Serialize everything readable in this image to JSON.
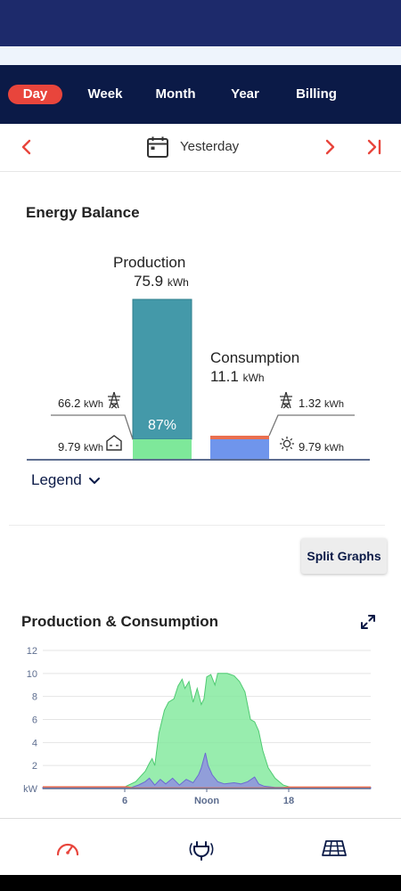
{
  "tabs": [
    {
      "label": "Day",
      "active": true
    },
    {
      "label": "Week",
      "active": false
    },
    {
      "label": "Month",
      "active": false
    },
    {
      "label": "Year",
      "active": false
    },
    {
      "label": "Billing",
      "active": false
    }
  ],
  "date_nav": {
    "label": "Yesterday"
  },
  "energy_balance": {
    "title": "Energy Balance",
    "production": {
      "label": "Production",
      "value": "75.9",
      "unit": "kWh",
      "self_consumed_percent": "87%"
    },
    "consumption": {
      "label": "Consumption",
      "value": "11.1",
      "unit": "kWh"
    },
    "grid_feed_in": {
      "value": "66.2",
      "unit": "kWh"
    },
    "self_consumption": {
      "value": "9.79",
      "unit": "kWh"
    },
    "grid_purchase": {
      "value": "1.32",
      "unit": "kWh"
    },
    "solar_consumption": {
      "value": "9.79",
      "unit": "kWh"
    },
    "legend_label": "Legend",
    "colors": {
      "production": "#4499a9",
      "self": "#7ee89a",
      "consumption_solar": "#6f95ec",
      "consumption_grid": "#ea6f4f"
    }
  },
  "split_graphs_label": "Split Graphs",
  "production_consumption": {
    "title": "Production & Consumption"
  },
  "chart_data": {
    "type": "area",
    "ylabel": "kW",
    "ylim": [
      0,
      12
    ],
    "yticks": [
      0,
      2,
      4,
      6,
      8,
      10,
      12
    ],
    "xlim": [
      0,
      24
    ],
    "xticks": [
      {
        "x": 6,
        "label": "6"
      },
      {
        "x": 12,
        "label": "Noon"
      },
      {
        "x": 18,
        "label": "18"
      }
    ],
    "series": [
      {
        "name": "Production",
        "color": "#7ee89a",
        "points": [
          [
            0,
            0
          ],
          [
            5.9,
            0
          ],
          [
            6.1,
            0.2
          ],
          [
            6.8,
            0.6
          ],
          [
            7.5,
            1.5
          ],
          [
            7.8,
            2.2
          ],
          [
            8.0,
            2.6
          ],
          [
            8.2,
            2.0
          ],
          [
            8.5,
            4.8
          ],
          [
            8.9,
            6.8
          ],
          [
            9.2,
            7.5
          ],
          [
            9.6,
            7.8
          ],
          [
            9.9,
            8.9
          ],
          [
            10.2,
            9.5
          ],
          [
            10.4,
            8.7
          ],
          [
            10.7,
            9.3
          ],
          [
            11.0,
            7.5
          ],
          [
            11.3,
            8.7
          ],
          [
            11.6,
            7.3
          ],
          [
            11.8,
            7.8
          ],
          [
            12.0,
            9.7
          ],
          [
            12.3,
            9.9
          ],
          [
            12.6,
            9.0
          ],
          [
            12.8,
            10.0
          ],
          [
            13.5,
            10.0
          ],
          [
            14.0,
            9.8
          ],
          [
            14.4,
            9.3
          ],
          [
            14.8,
            8.4
          ],
          [
            15.2,
            6.0
          ],
          [
            15.5,
            5.8
          ],
          [
            15.8,
            5.0
          ],
          [
            16.1,
            3.3
          ],
          [
            16.5,
            1.8
          ],
          [
            17.0,
            0.9
          ],
          [
            17.6,
            0.3
          ],
          [
            18.3,
            0.05
          ],
          [
            18.6,
            0
          ],
          [
            24,
            0
          ]
        ]
      },
      {
        "name": "Consumption",
        "color": "#8f8fe0",
        "points": [
          [
            0,
            0.1
          ],
          [
            6.5,
            0.1
          ],
          [
            7.0,
            0.3
          ],
          [
            7.5,
            0.6
          ],
          [
            7.8,
            0.9
          ],
          [
            8.2,
            0.3
          ],
          [
            8.6,
            0.8
          ],
          [
            9.0,
            0.4
          ],
          [
            9.5,
            0.9
          ],
          [
            10.0,
            0.3
          ],
          [
            10.5,
            0.8
          ],
          [
            11.0,
            0.5
          ],
          [
            11.4,
            1.2
          ],
          [
            11.6,
            1.8
          ],
          [
            11.9,
            3.1
          ],
          [
            12.1,
            2.0
          ],
          [
            12.4,
            1.2
          ],
          [
            12.8,
            0.6
          ],
          [
            13.3,
            0.4
          ],
          [
            14.0,
            0.5
          ],
          [
            14.5,
            0.4
          ],
          [
            15.0,
            0.6
          ],
          [
            15.5,
            1.0
          ],
          [
            15.8,
            0.4
          ],
          [
            16.2,
            0.2
          ],
          [
            17.0,
            0.1
          ],
          [
            24,
            0.1
          ]
        ]
      },
      {
        "name": "Grid",
        "color": "#ea6f4f",
        "points": [
          [
            0,
            0.15
          ],
          [
            6.2,
            0.15
          ],
          [
            6.5,
            0.05
          ],
          [
            17.5,
            0.05
          ],
          [
            18.0,
            0.12
          ],
          [
            24,
            0.12
          ]
        ]
      }
    ]
  },
  "bottom_nav": [
    {
      "icon": "gauge-icon",
      "active": true
    },
    {
      "icon": "plug-icon",
      "active": false
    },
    {
      "icon": "solar-panel-icon",
      "active": false
    }
  ]
}
